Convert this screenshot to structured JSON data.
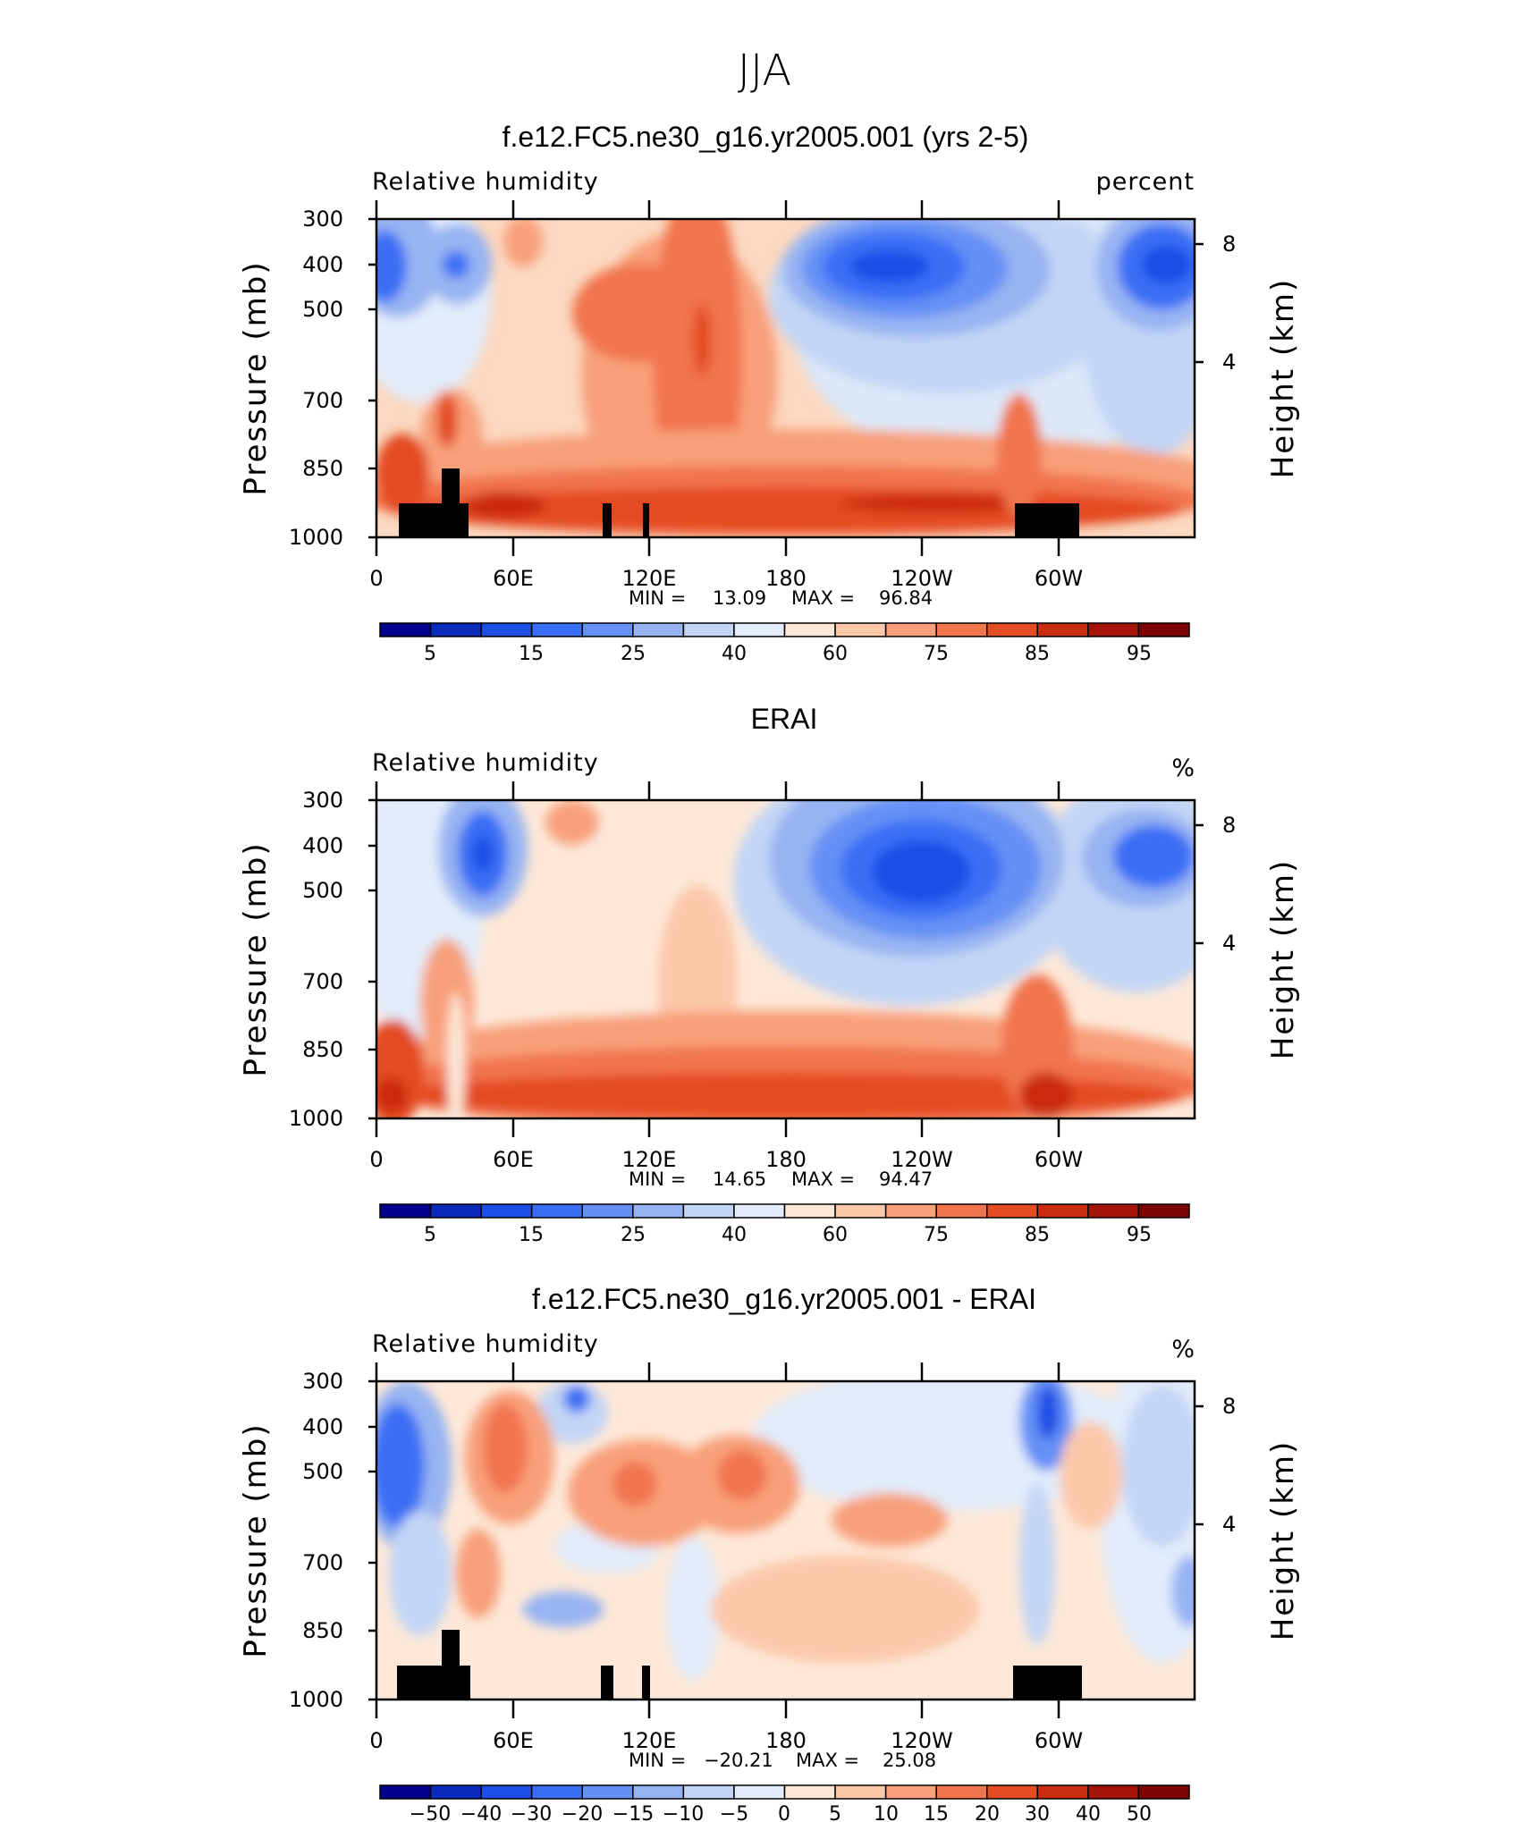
{
  "title": "JJA",
  "chart_data": [
    {
      "type": "heatmap",
      "subtitle": "f.e12.FC5.ne30_g16.yr2005.001 (yrs 2-5)",
      "variable_label": "Relative humidity",
      "units_label": "percent",
      "ylabel": "Pressure (mb)",
      "ylabel_right": "Height (km)",
      "y_ticks": [
        "300",
        "400",
        "500",
        "700",
        "850",
        "1000"
      ],
      "y_right_ticks": [
        "8",
        "4"
      ],
      "x_ticks": [
        "0",
        "60E",
        "120E",
        "180",
        "120W",
        "60W"
      ],
      "stats": {
        "min_label": "MIN =",
        "min": "13.09",
        "max_label": "MAX =",
        "max": "96.84"
      },
      "colorbar_labels": [
        "5",
        "15",
        "25",
        "40",
        "60",
        "75",
        "85",
        "95"
      ],
      "colorbar_colors": [
        "#00008c",
        "#0a2aba",
        "#1c4ee5",
        "#3a6ef5",
        "#6590f5",
        "#97b4f2",
        "#c3d5f5",
        "#e2ecfa",
        "#fde8d8",
        "#fcc8aa",
        "#f8a07c",
        "#f1754e",
        "#e44c24",
        "#ca2c0f",
        "#a51408",
        "#7c0404"
      ],
      "topography": true
    },
    {
      "type": "heatmap",
      "subtitle": "ERAI",
      "variable_label": "Relative humidity",
      "units_label": "%",
      "ylabel": "Pressure (mb)",
      "ylabel_right": "Height (km)",
      "y_ticks": [
        "300",
        "400",
        "500",
        "700",
        "850",
        "1000"
      ],
      "y_right_ticks": [
        "8",
        "4"
      ],
      "x_ticks": [
        "0",
        "60E",
        "120E",
        "180",
        "120W",
        "60W"
      ],
      "stats": {
        "min_label": "MIN =",
        "min": "14.65",
        "max_label": "MAX =",
        "max": "94.47"
      },
      "colorbar_labels": [
        "5",
        "15",
        "25",
        "40",
        "60",
        "75",
        "85",
        "95"
      ],
      "colorbar_colors": [
        "#00008c",
        "#0a2aba",
        "#1c4ee5",
        "#3a6ef5",
        "#6590f5",
        "#97b4f2",
        "#c3d5f5",
        "#e2ecfa",
        "#fde8d8",
        "#fcc8aa",
        "#f8a07c",
        "#f1754e",
        "#e44c24",
        "#ca2c0f",
        "#a51408",
        "#7c0404"
      ],
      "topography": false
    },
    {
      "type": "heatmap",
      "subtitle": "f.e12.FC5.ne30_g16.yr2005.001 - ERAI",
      "variable_label": "Relative humidity",
      "units_label": "%",
      "ylabel": "Pressure (mb)",
      "ylabel_right": "Height (km)",
      "y_ticks": [
        "300",
        "400",
        "500",
        "700",
        "850",
        "1000"
      ],
      "y_right_ticks": [
        "8",
        "4"
      ],
      "x_ticks": [
        "0",
        "60E",
        "120E",
        "180",
        "120W",
        "60W"
      ],
      "stats": {
        "min_label": "MIN =",
        "min": "−20.21",
        "max_label": "MAX =",
        "max": "25.08"
      },
      "colorbar_labels": [
        "−50",
        "−40",
        "−30",
        "−20",
        "−15",
        "−10",
        "−5",
        "0",
        "5",
        "10",
        "15",
        "20",
        "30",
        "40",
        "50"
      ],
      "colorbar_colors": [
        "#00008c",
        "#0a2aba",
        "#1c4ee5",
        "#3a6ef5",
        "#6590f5",
        "#97b4f2",
        "#c3d5f5",
        "#e2ecfa",
        "#fde8d8",
        "#fcc8aa",
        "#f8a07c",
        "#f1754e",
        "#e44c24",
        "#ca2c0f",
        "#a51408",
        "#7c0404"
      ],
      "topography": true
    }
  ]
}
